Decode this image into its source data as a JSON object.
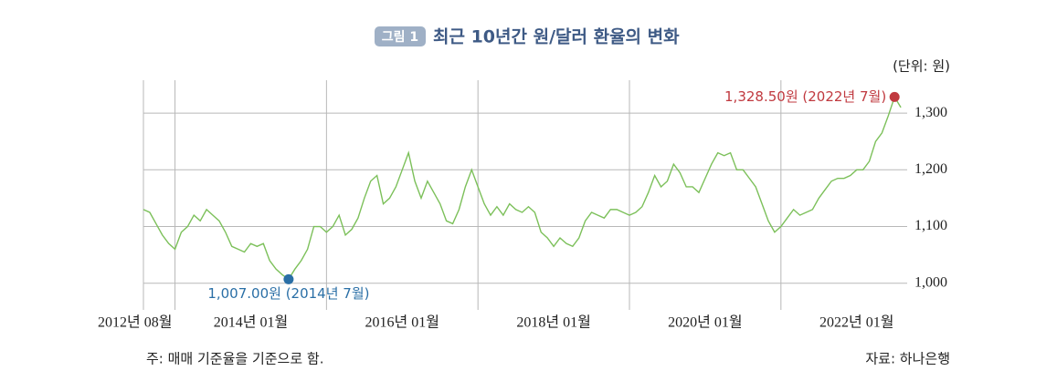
{
  "chart_data": {
    "type": "line",
    "badge": "그림 1",
    "title": "최근 10년간 원/달러 환율의 변화",
    "unit_label": "(단위: 원)",
    "note": "주: 매매 기준율을 기준으로 함.",
    "source": "자료: 하나은행",
    "x": [
      "2012-08",
      "2012-09",
      "2012-10",
      "2012-11",
      "2012-12",
      "2013-01",
      "2013-02",
      "2013-03",
      "2013-04",
      "2013-05",
      "2013-06",
      "2013-07",
      "2013-08",
      "2013-09",
      "2013-10",
      "2013-11",
      "2013-12",
      "2014-01",
      "2014-02",
      "2014-03",
      "2014-04",
      "2014-05",
      "2014-06",
      "2014-07",
      "2014-08",
      "2014-09",
      "2014-10",
      "2014-11",
      "2014-12",
      "2015-01",
      "2015-02",
      "2015-03",
      "2015-04",
      "2015-05",
      "2015-06",
      "2015-07",
      "2015-08",
      "2015-09",
      "2015-10",
      "2015-11",
      "2015-12",
      "2016-01",
      "2016-02",
      "2016-03",
      "2016-04",
      "2016-05",
      "2016-06",
      "2016-07",
      "2016-08",
      "2016-09",
      "2016-10",
      "2016-11",
      "2016-12",
      "2017-01",
      "2017-02",
      "2017-03",
      "2017-04",
      "2017-05",
      "2017-06",
      "2017-07",
      "2017-08",
      "2017-09",
      "2017-10",
      "2017-11",
      "2017-12",
      "2018-01",
      "2018-02",
      "2018-03",
      "2018-04",
      "2018-05",
      "2018-06",
      "2018-07",
      "2018-08",
      "2018-09",
      "2018-10",
      "2018-11",
      "2018-12",
      "2019-01",
      "2019-02",
      "2019-03",
      "2019-04",
      "2019-05",
      "2019-06",
      "2019-07",
      "2019-08",
      "2019-09",
      "2019-10",
      "2019-11",
      "2019-12",
      "2020-01",
      "2020-02",
      "2020-03",
      "2020-04",
      "2020-05",
      "2020-06",
      "2020-07",
      "2020-08",
      "2020-09",
      "2020-10",
      "2020-11",
      "2020-12",
      "2021-01",
      "2021-02",
      "2021-03",
      "2021-04",
      "2021-05",
      "2021-06",
      "2021-07",
      "2021-08",
      "2021-09",
      "2021-10",
      "2021-11",
      "2021-12",
      "2022-01",
      "2022-02",
      "2022-03",
      "2022-04",
      "2022-05",
      "2022-06",
      "2022-07",
      "2022-08"
    ],
    "series": [
      {
        "color": "#7cc05a",
        "values": [
          1130,
          1125,
          1105,
          1085,
          1070,
          1060,
          1090,
          1100,
          1120,
          1110,
          1130,
          1120,
          1110,
          1090,
          1065,
          1060,
          1055,
          1070,
          1065,
          1070,
          1040,
          1025,
          1015,
          1007,
          1025,
          1040,
          1060,
          1100,
          1100,
          1090,
          1100,
          1120,
          1085,
          1095,
          1115,
          1150,
          1180,
          1190,
          1140,
          1150,
          1170,
          1200,
          1230,
          1180,
          1150,
          1180,
          1160,
          1140,
          1110,
          1105,
          1130,
          1170,
          1200,
          1170,
          1140,
          1120,
          1135,
          1120,
          1140,
          1130,
          1125,
          1135,
          1125,
          1090,
          1080,
          1065,
          1080,
          1070,
          1065,
          1080,
          1110,
          1125,
          1120,
          1115,
          1130,
          1130,
          1125,
          1120,
          1125,
          1135,
          1160,
          1190,
          1170,
          1180,
          1210,
          1195,
          1170,
          1170,
          1160,
          1185,
          1210,
          1230,
          1225,
          1230,
          1200,
          1200,
          1185,
          1170,
          1140,
          1110,
          1090,
          1100,
          1115,
          1130,
          1120,
          1125,
          1130,
          1150,
          1165,
          1180,
          1185,
          1185,
          1190,
          1200,
          1200,
          1215,
          1250,
          1265,
          1295,
          1328.5,
          1310
        ]
      }
    ],
    "highlights": [
      {
        "x": "2014-07",
        "value": 1007,
        "label": "1,007.00원 (2014년 7월)",
        "color": "#2a6fa6"
      },
      {
        "x": "2022-07",
        "value": 1328.5,
        "label": "1,328.50원 (2022년 7월)",
        "color": "#c0393f"
      }
    ],
    "xlim": [
      "2012-08",
      "2022-09"
    ],
    "xticks": [
      {
        "value": "2012-08",
        "label": "2012년 08월"
      },
      {
        "value": "2014-01",
        "label": "2014년 01월"
      },
      {
        "value": "2016-01",
        "label": "2016년 01월"
      },
      {
        "value": "2018-01",
        "label": "2018년 01월"
      },
      {
        "value": "2020-01",
        "label": "2020년 01월"
      },
      {
        "value": "2022-01",
        "label": "2022년 01월"
      }
    ],
    "xgrid": [
      "2012-08",
      "2013-01",
      "2015-01",
      "2017-01",
      "2019-01",
      "2021-01"
    ],
    "ylim": [
      953,
      1358
    ],
    "yticks": [
      {
        "value": 1000,
        "label": "1,000"
      },
      {
        "value": 1100,
        "label": "1,100"
      },
      {
        "value": 1200,
        "label": "1,200"
      },
      {
        "value": 1300,
        "label": "1,300"
      }
    ],
    "grid": true
  }
}
